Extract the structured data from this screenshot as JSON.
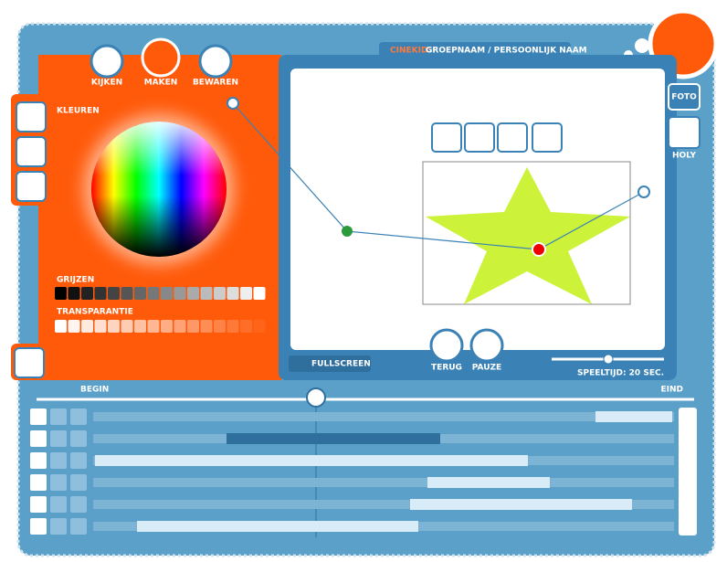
{
  "tabs": [
    {
      "label": "KIJKEN"
    },
    {
      "label": "MAKEN"
    },
    {
      "label": "BEWAREN"
    }
  ],
  "header": {
    "brand": "CINEKID:",
    "title": "GROEPNAAM / PERSOONLIJK NAAM"
  },
  "color_panel": {
    "colors_label": "KLEUREN",
    "grays_label": "GRIJZEN",
    "transparency_label": "TRANSPARANTIE"
  },
  "side_buttons": [
    {
      "label": "FOTO"
    },
    {
      "label": "HOLY"
    }
  ],
  "controls": {
    "fullscreen": "FULLSCREEN",
    "back": "TERUG",
    "pause": "PAUZE",
    "playtime": "SPEELTIJD: 20 SEC."
  },
  "timeline": {
    "start_label": "BEGIN",
    "end_label": "EIND"
  }
}
